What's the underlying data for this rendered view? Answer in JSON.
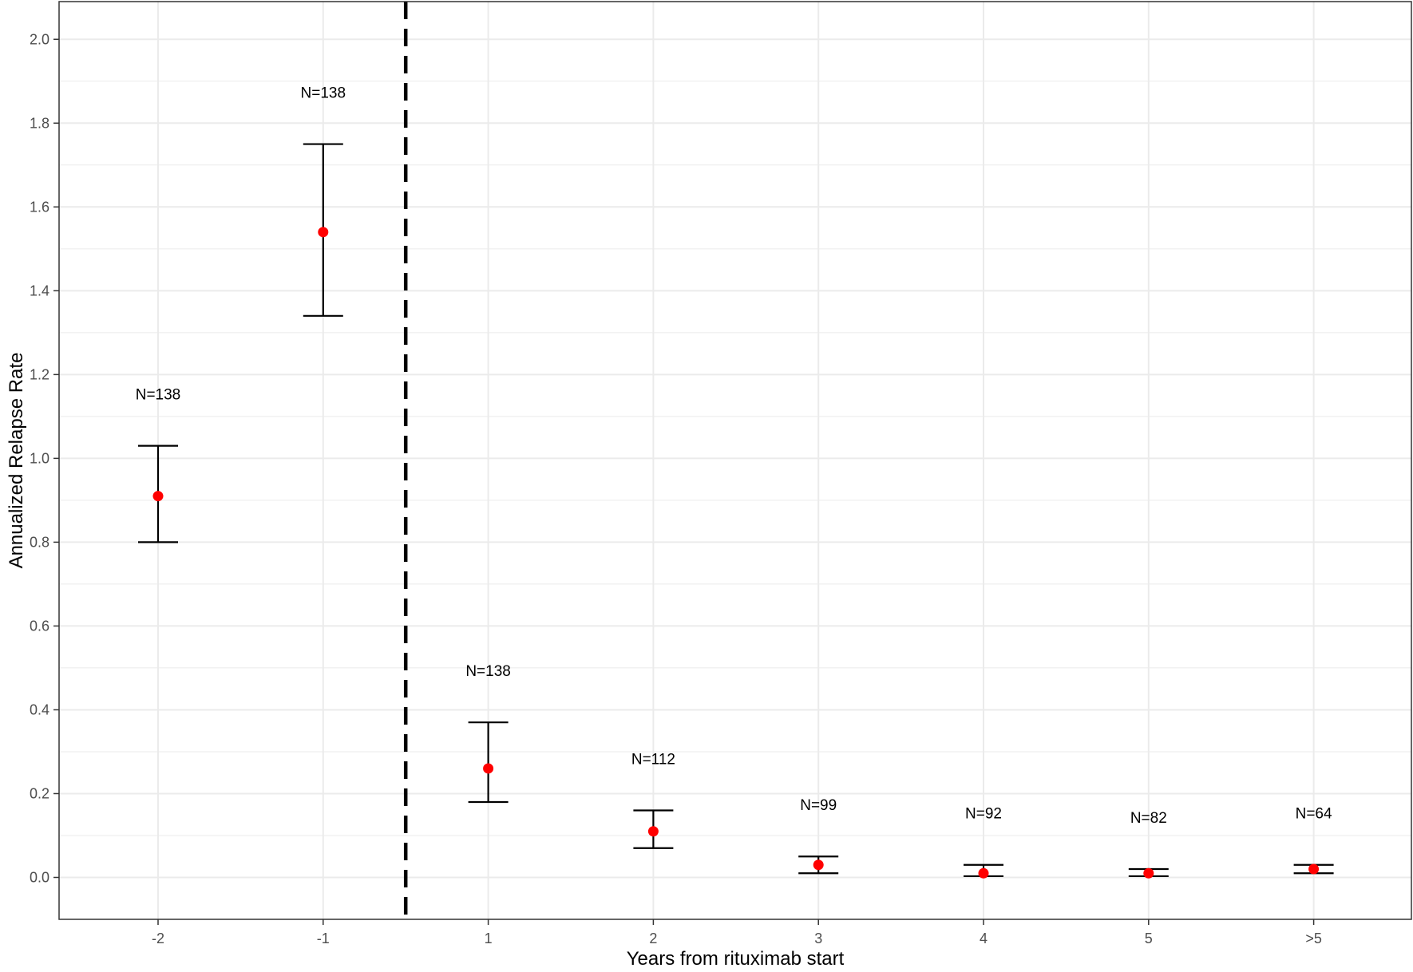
{
  "chart_data": {
    "type": "scatter",
    "title": "",
    "xlabel": "Years from rituximab start",
    "ylabel": "Annualized Relapse Rate",
    "categories": [
      "-2",
      "-1",
      "1",
      "2",
      "3",
      "4",
      "5",
      ">5"
    ],
    "values": [
      0.91,
      1.54,
      0.26,
      0.11,
      0.03,
      0.01,
      0.01,
      0.02
    ],
    "ci_lower": [
      0.8,
      1.34,
      0.18,
      0.07,
      0.01,
      0.003,
      0.003,
      0.01
    ],
    "ci_upper": [
      1.03,
      1.75,
      0.37,
      0.16,
      0.05,
      0.03,
      0.02,
      0.03
    ],
    "n_labels": [
      "N=138",
      "N=138",
      "N=138",
      "N=112",
      "N=99",
      "N=92",
      "N=82",
      "N=64"
    ],
    "y_ticks": [
      "0.0",
      "0.2",
      "0.4",
      "0.6",
      "0.8",
      "1.0",
      "1.2",
      "1.4",
      "1.6",
      "1.8",
      "2.0"
    ],
    "ylim": [
      -0.1,
      2.09
    ],
    "reference_line": {
      "position": "between -1 and 1",
      "style": "dashed"
    },
    "grid": true,
    "legend": "none",
    "colors": {
      "point": "#ff0000",
      "errorbar": "#000000",
      "grid": "#ebebeb",
      "panel_border": "#333333"
    }
  }
}
